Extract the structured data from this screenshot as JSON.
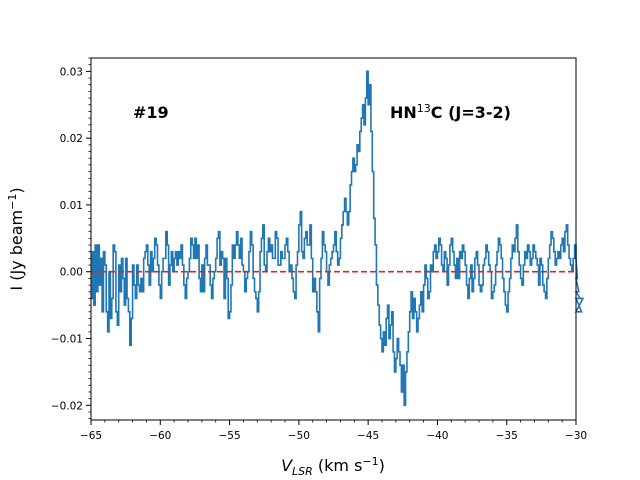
{
  "chart_data": {
    "type": "line",
    "title": "",
    "xlabel": {
      "main": "V",
      "sub": "LSR",
      "unit_pre": " (km s",
      "unit_sup": "−1",
      "unit_post": ")"
    },
    "ylabel": {
      "main": "I (Jy beam",
      "sup": "−1",
      "post": ")"
    },
    "xlim": [
      -65,
      -30
    ],
    "ylim": [
      -0.0222,
      0.032
    ],
    "x_ticks": [
      -65,
      -60,
      -55,
      -50,
      -45,
      -40,
      -35,
      -30
    ],
    "x_tick_labels": [
      "−65",
      "−60",
      "−55",
      "−50",
      "−45",
      "−40",
      "−35",
      "−30"
    ],
    "y_ticks": [
      -0.02,
      -0.01,
      0.0,
      0.01,
      0.02,
      0.03
    ],
    "y_tick_labels": [
      "−0.02",
      "−0.01",
      "0.00",
      "0.01",
      "0.02",
      "0.03"
    ],
    "annotations": {
      "left": "#19",
      "right": {
        "pre": "HN",
        "sup": "13",
        "post": "C (J=3-2)"
      }
    },
    "baseline": {
      "y": 0.0,
      "color": "#d62728",
      "style": "dashed"
    },
    "series": [
      {
        "color": "#1f77b4",
        "x_start": -65.0,
        "x_step": 0.1,
        "values": [
          -0.004,
          0.003,
          -0.005,
          0.004,
          -0.003,
          0.004,
          -0.002,
          0.002,
          -0.006,
          0.003,
          0.001,
          -0.006,
          -0.009,
          0.0,
          -0.007,
          -0.004,
          0.004,
          0.003,
          -0.006,
          -0.008,
          0.001,
          -0.003,
          0.002,
          -0.001,
          -0.005,
          0.002,
          -0.004,
          -0.006,
          -0.011,
          -0.007,
          0.001,
          -0.002,
          -0.004,
          0.001,
          -0.002,
          -0.003,
          -0.001,
          -0.003,
          0.002,
          0.003,
          0.004,
          0.001,
          -0.002,
          0.003,
          0.0,
          0.002,
          0.005,
          0.004,
          0.001,
          -0.002,
          -0.004,
          0.0,
          0.002,
          0.002,
          0.006,
          0.004,
          -0.002,
          0.001,
          0.003,
          0.0,
          0.002,
          0.003,
          0.001,
          0.003,
          0.002,
          0.004,
          0.001,
          -0.002,
          -0.004,
          -0.001,
          0.0,
          0.002,
          0.005,
          0.004,
          0.002,
          0.005,
          0.002,
          0.004,
          -0.001,
          -0.003,
          0.001,
          -0.003,
          0.002,
          0.004,
          0.001,
          0.001,
          -0.002,
          -0.004,
          -0.001,
          0.0,
          0.002,
          0.005,
          0.006,
          0.001,
          0.003,
          0.002,
          -0.004,
          0.002,
          -0.001,
          -0.007,
          -0.006,
          -0.002,
          0.004,
          0.002,
          0.004,
          0.006,
          0.004,
          0.002,
          0.005,
          0.001,
          0.0,
          -0.003,
          -0.001,
          0.0,
          0.003,
          0.006,
          0.004,
          -0.001,
          -0.003,
          -0.004,
          -0.006,
          -0.003,
          0.003,
          0.005,
          0.007,
          0.001,
          0.0,
          0.003,
          0.005,
          0.003,
          0.004,
          0.002,
          0.002,
          0.006,
          0.005,
          0.001,
          0.001,
          0.003,
          0.002,
          0.002,
          0.004,
          0.005,
          0.003,
          0.0,
          0.001,
          -0.001,
          -0.003,
          -0.004,
          0.001,
          0.003,
          0.007,
          0.009,
          0.003,
          0.002,
          0.005,
          0.006,
          0.004,
          0.004,
          0.007,
          0.002,
          -0.003,
          -0.001,
          -0.003,
          -0.006,
          -0.009,
          -0.001,
          0.002,
          0.006,
          0.004,
          0.003,
          0.0,
          -0.002,
          0.001,
          0.002,
          0.003,
          0.004,
          0.006,
          0.003,
          0.001,
          0.002,
          0.005,
          0.007,
          0.009,
          0.011,
          0.009,
          0.007,
          0.009,
          0.013,
          0.015,
          0.017,
          0.015,
          0.016,
          0.019,
          0.018,
          0.021,
          0.023,
          0.025,
          0.022,
          0.026,
          0.03,
          0.025,
          0.028,
          0.021,
          0.015,
          0.008,
          0.004,
          -0.002,
          -0.005,
          -0.008,
          -0.01,
          -0.012,
          -0.009,
          -0.011,
          -0.007,
          -0.005,
          -0.01,
          -0.008,
          -0.006,
          -0.012,
          -0.015,
          -0.013,
          -0.01,
          -0.012,
          -0.014,
          -0.018,
          -0.014,
          -0.02,
          -0.015,
          -0.012,
          -0.009,
          -0.006,
          -0.003,
          -0.007,
          -0.004,
          -0.006,
          -0.009,
          -0.007,
          -0.005,
          -0.003,
          -0.006,
          -0.002,
          0.001,
          -0.001,
          -0.004,
          -0.003,
          0.001,
          0.0,
          0.003,
          0.004,
          0.002,
          0.003,
          0.005,
          0.004,
          0.001,
          0.0,
          0.003,
          0.002,
          -0.002,
          0.001,
          0.004,
          0.005,
          0.003,
          0.001,
          -0.001,
          0.002,
          -0.001,
          0.003,
          0.002,
          0.004,
          0.003,
          0.001,
          -0.002,
          -0.004,
          -0.001,
          0.001,
          -0.003,
          -0.001,
          0.002,
          0.003,
          0.001,
          -0.002,
          -0.003,
          -0.002,
          0.001,
          0.002,
          0.004,
          0.003,
          0.001,
          0.0,
          -0.004,
          -0.003,
          -0.002,
          0.001,
          0.003,
          0.005,
          0.004,
          0.002,
          -0.001,
          -0.003,
          -0.005,
          -0.006,
          -0.003,
          -0.001,
          0.002,
          0.004,
          0.003,
          0.005,
          0.007,
          0.003,
          0.001,
          -0.001,
          -0.002,
          0.001,
          0.003,
          0.002,
          0.004,
          0.003,
          0.001,
          0.002,
          0.004,
          0.003,
          0.002,
          0.001,
          -0.002,
          0.002,
          0.001,
          -0.002,
          -0.003,
          -0.004,
          -0.001,
          0.002,
          0.004,
          0.006,
          0.005,
          0.003,
          0.001,
          0.002,
          0.003,
          0.002,
          0.004,
          0.005,
          0.003,
          0.006,
          0.007,
          0.004,
          0.002,
          0.001,
          0.0,
          0.002,
          0.004,
          0.002,
          -0.001,
          -0.003,
          -0.004,
          -0.006,
          -0.004
        ]
      }
    ]
  }
}
